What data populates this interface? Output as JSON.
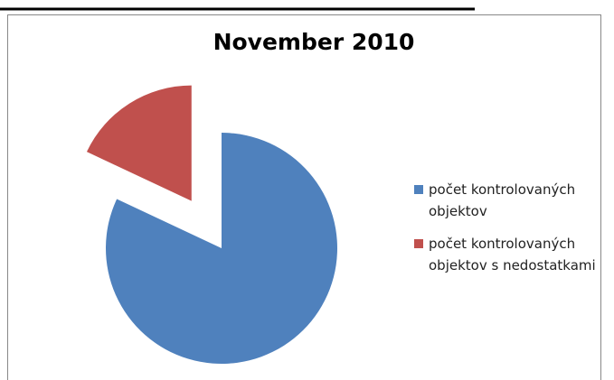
{
  "chart_data": {
    "type": "pie",
    "title": "November 2010",
    "series": [
      {
        "name": "počet kontrolovaných objektov",
        "color": "#4f81bd",
        "values": [
          82
        ]
      },
      {
        "name": "počet kontrolovaných objektov s nedostatkami",
        "color": "#c0504d",
        "values": [
          18
        ]
      }
    ],
    "explode": [
      0,
      1
    ],
    "legend": "right"
  }
}
